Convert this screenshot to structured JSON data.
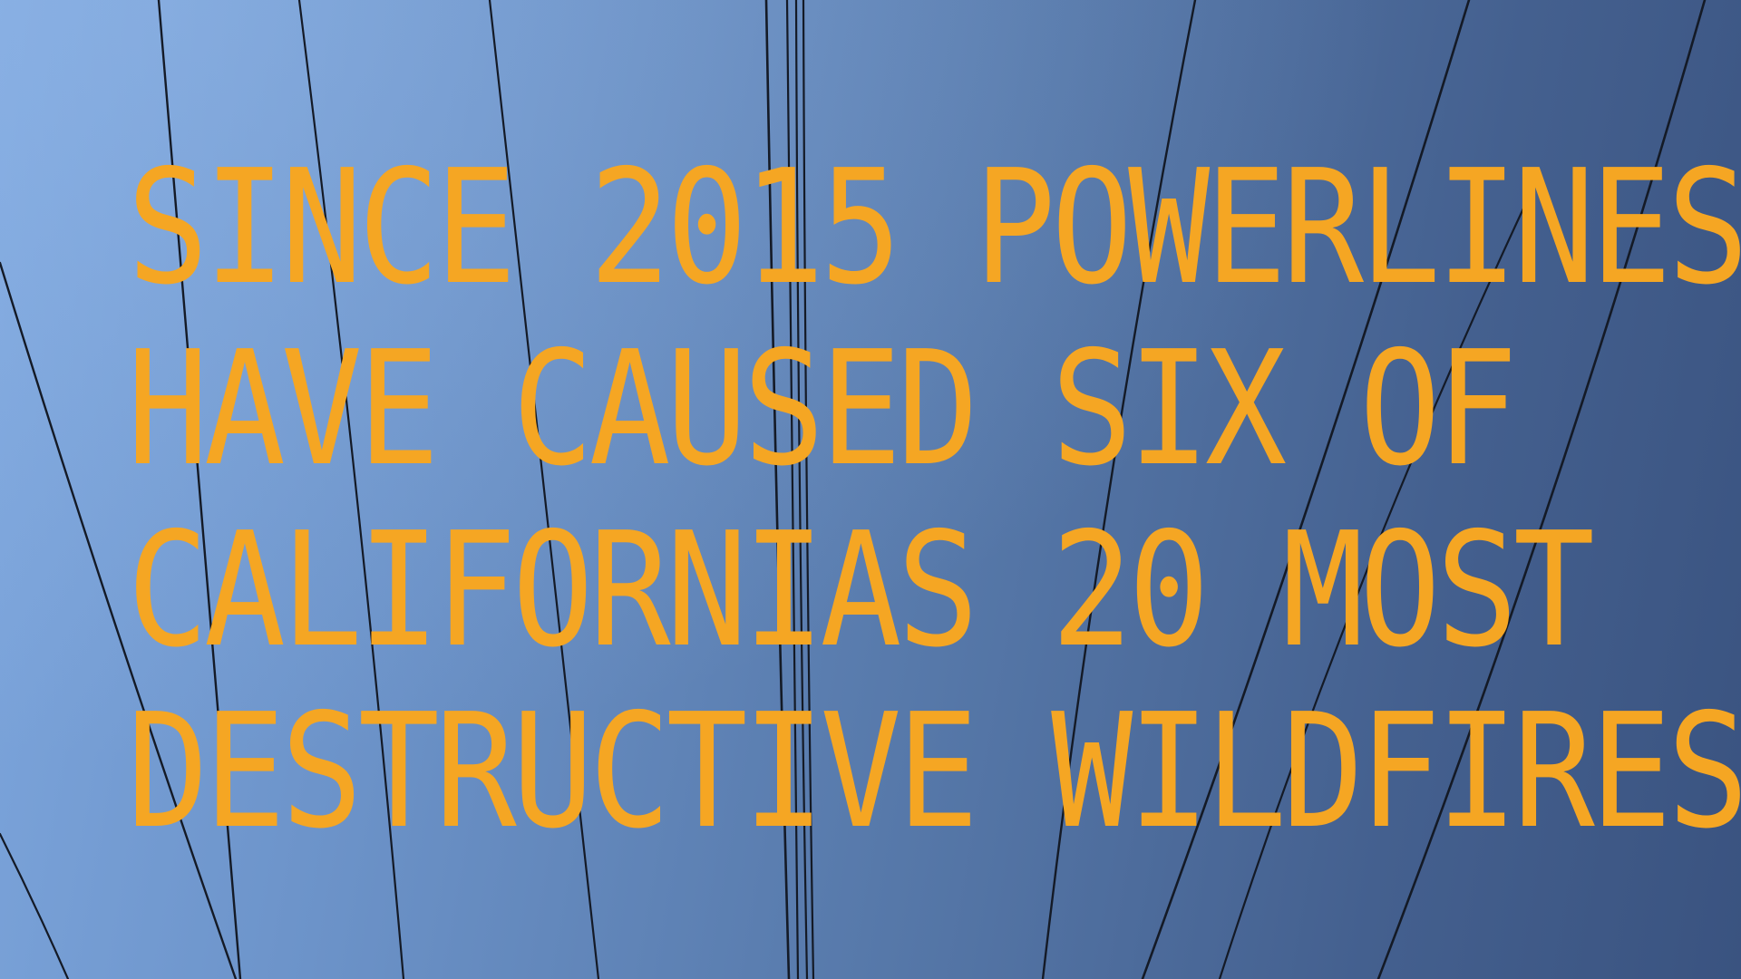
{
  "image": {
    "scene": "blue sky crossed by overhead powerline cables",
    "colors": {
      "sky_light": "#7ea7de",
      "sky_dark": "#3a5380",
      "wire": "#141a26",
      "text": "#f5a623"
    }
  },
  "headline": {
    "lines": [
      "SINCE 2015 POWERLINES",
      "HAVE CAUSED SIX OF",
      "CALIFORNIAS 20 MOST",
      "DESTRUCTIVE WILDFIRES"
    ]
  }
}
